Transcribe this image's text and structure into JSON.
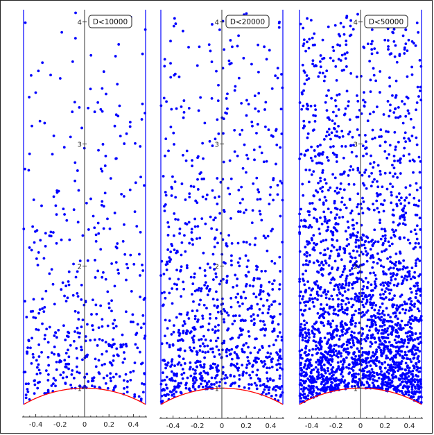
{
  "chart_data": [
    {
      "type": "scatter",
      "legend": "D<10000",
      "xlim": [
        -0.5,
        0.5
      ],
      "ylim": [
        0.866,
        4.1
      ],
      "x_ticks": [
        -0.4,
        -0.2,
        0,
        0.2,
        0.4
      ],
      "x_tick_labels": [
        "-0.4",
        "-0.2",
        "0",
        "0.2",
        "0.4"
      ],
      "y_ticks": [
        1,
        2,
        3,
        4
      ],
      "y_tick_labels": [
        "1",
        "2",
        "3",
        "4"
      ],
      "boundary_lines": [
        -0.5,
        0.5
      ],
      "arc": "unit circle |z|=1",
      "point_count": 470,
      "seed": 101,
      "point_color": "#0000ff",
      "line_color": "#0000ff",
      "arc_color": "#ff0000"
    },
    {
      "type": "scatter",
      "legend": "D<20000",
      "xlim": [
        -0.5,
        0.5
      ],
      "ylim": [
        0.866,
        4.1
      ],
      "x_ticks": [
        -0.4,
        -0.2,
        0,
        0.2,
        0.4
      ],
      "x_tick_labels": [
        "-0.4",
        "-0.2",
        "0",
        "0.2",
        "0.4"
      ],
      "y_ticks": [
        1,
        2,
        3,
        4
      ],
      "y_tick_labels": [
        "1",
        "2",
        "3",
        "4"
      ],
      "boundary_lines": [
        -0.5,
        0.5
      ],
      "arc": "unit circle |z|=1",
      "point_count": 950,
      "seed": 202,
      "point_color": "#0000ff",
      "line_color": "#0000ff",
      "arc_color": "#ff0000"
    },
    {
      "type": "scatter",
      "legend": "D<50000",
      "xlim": [
        -0.5,
        0.5
      ],
      "ylim": [
        0.866,
        4.1
      ],
      "x_ticks": [
        -0.4,
        -0.2,
        0,
        0.2,
        0.4
      ],
      "x_tick_labels": [
        "-0.4",
        "-0.2",
        "0",
        "0.2",
        "0.4"
      ],
      "y_ticks": [
        1,
        2,
        3,
        4
      ],
      "y_tick_labels": [
        "1",
        "2",
        "3",
        "4"
      ],
      "boundary_lines": [
        -0.5,
        0.5
      ],
      "arc": "unit circle |z|=1",
      "point_count": 2400,
      "seed": 303,
      "point_color": "#0000ff",
      "line_color": "#0000ff",
      "arc_color": "#ff0000"
    }
  ]
}
